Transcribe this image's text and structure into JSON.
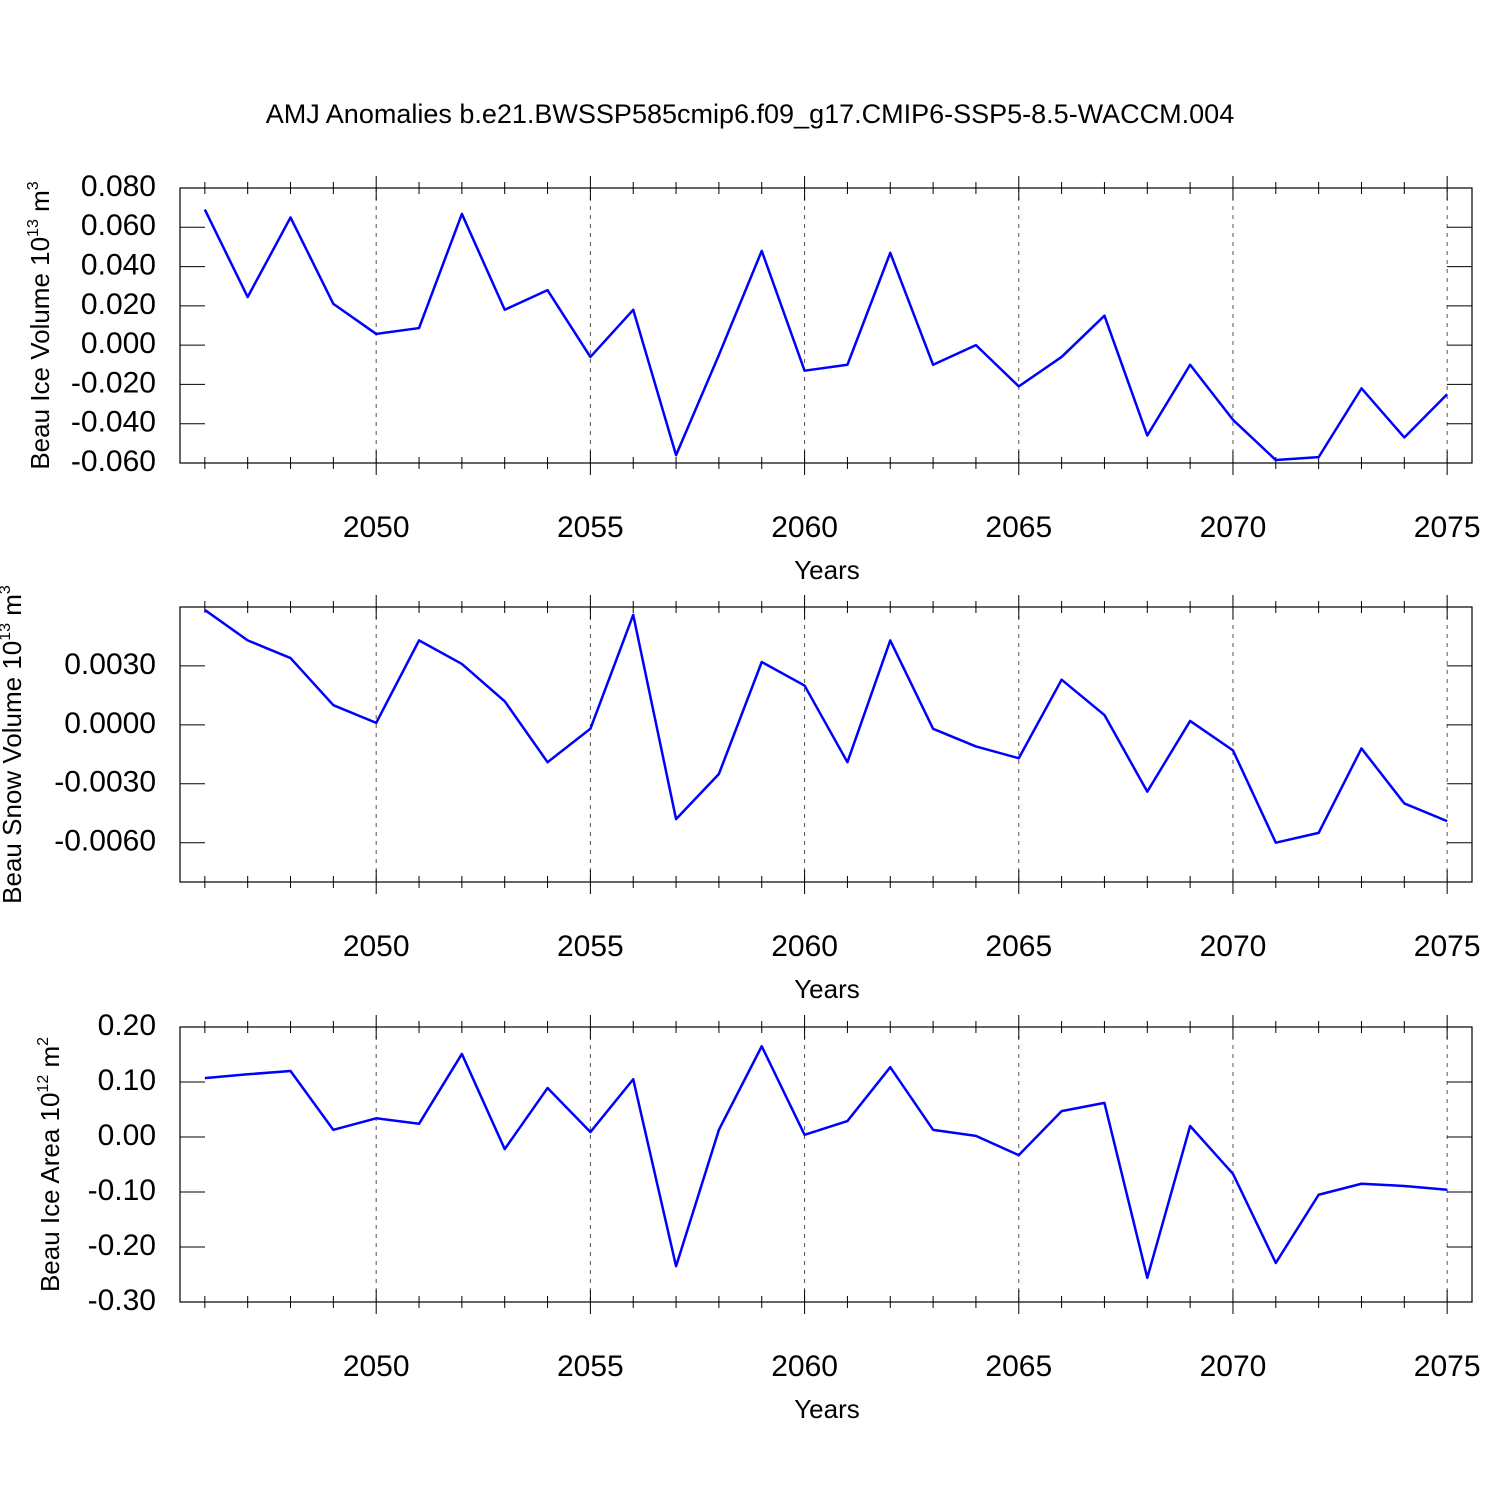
{
  "chart_data": [
    {
      "type": "line",
      "title": "AMJ Anomalies b.e21.BWSSP585cmip6.f09_g17.CMIP6-SSP5-8.5-WACCM.004",
      "ylabel": {
        "text": "Beau Ice Volume 10",
        "exponent": "13",
        "unit": " m",
        "unit_exponent": "3"
      },
      "xlabel": "Years",
      "x": [
        2046,
        2047,
        2048,
        2049,
        2050,
        2051,
        2052,
        2053,
        2054,
        2055,
        2056,
        2057,
        2058,
        2059,
        2060,
        2061,
        2062,
        2063,
        2064,
        2065,
        2066,
        2067,
        2068,
        2069,
        2070,
        2071,
        2072,
        2073,
        2074,
        2075
      ],
      "series": [
        {
          "color": "#0000ff",
          "values": [
            0.069,
            0.0245,
            0.065,
            0.021,
            0.0057,
            0.0087,
            0.0668,
            0.018,
            0.028,
            -0.006,
            0.018,
            -0.056,
            -0.005,
            0.048,
            -0.013,
            -0.01,
            0.047,
            -0.01,
            0.0,
            -0.021,
            -0.006,
            0.015,
            -0.046,
            -0.01,
            -0.038,
            -0.0585,
            -0.057,
            -0.022,
            -0.047,
            -0.025
          ]
        }
      ],
      "xlim": [
        2045.42,
        2075.58
      ],
      "xticks": [
        2050,
        2055,
        2060,
        2065,
        2070,
        2075
      ],
      "xminorticks": [
        2046,
        2047,
        2048,
        2049,
        2051,
        2052,
        2053,
        2054,
        2056,
        2057,
        2058,
        2059,
        2061,
        2062,
        2063,
        2064,
        2066,
        2067,
        2068,
        2069,
        2071,
        2072,
        2073,
        2074
      ],
      "ylim": [
        -0.06,
        0.08
      ],
      "yticks": [
        {
          "value": 0.08,
          "label": "0.080"
        },
        {
          "value": 0.06,
          "label": "0.060"
        },
        {
          "value": 0.04,
          "label": "0.040"
        },
        {
          "value": 0.02,
          "label": "0.020"
        },
        {
          "value": 0,
          "label": "0.000"
        },
        {
          "value": -0.02,
          "label": "-0.020"
        },
        {
          "value": -0.04,
          "label": "-0.040"
        },
        {
          "value": -0.06,
          "label": "-0.060"
        }
      ],
      "grid": "x-dashed"
    },
    {
      "type": "line",
      "ylabel": {
        "text": "Beau Snow Volume 10",
        "exponent": "13",
        "unit": " m",
        "unit_exponent": "3"
      },
      "xlabel": "Years",
      "x": [
        2046,
        2047,
        2048,
        2049,
        2050,
        2051,
        2052,
        2053,
        2054,
        2055,
        2056,
        2057,
        2058,
        2059,
        2060,
        2061,
        2062,
        2063,
        2064,
        2065,
        2066,
        2067,
        2068,
        2069,
        2070,
        2071,
        2072,
        2073,
        2074,
        2075
      ],
      "series": [
        {
          "color": "#0000ff",
          "values": [
            0.00585,
            0.0043,
            0.0034,
            0.001,
            0.0001,
            0.0043,
            0.0031,
            0.0012,
            -0.0019,
            -0.0002,
            0.0056,
            -0.0048,
            -0.0025,
            0.0032,
            0.002,
            -0.0019,
            0.0043,
            -0.0002,
            -0.0011,
            -0.0017,
            0.0023,
            0.0005,
            -0.0034,
            0.0002,
            -0.0013,
            -0.006,
            -0.0055,
            -0.0012,
            -0.004,
            -0.0049
          ]
        }
      ],
      "xlim": [
        2045.42,
        2075.58
      ],
      "xticks": [
        2050,
        2055,
        2060,
        2065,
        2070,
        2075
      ],
      "xminorticks": [
        2046,
        2047,
        2048,
        2049,
        2051,
        2052,
        2053,
        2054,
        2056,
        2057,
        2058,
        2059,
        2061,
        2062,
        2063,
        2064,
        2066,
        2067,
        2068,
        2069,
        2071,
        2072,
        2073,
        2074
      ],
      "ylim": [
        -0.008,
        0.006
      ],
      "yticks": [
        {
          "value": 0.003,
          "label": "0.0030"
        },
        {
          "value": 0,
          "label": "0.0000"
        },
        {
          "value": -0.003,
          "label": "-0.0030"
        },
        {
          "value": -0.006,
          "label": "-0.0060"
        }
      ],
      "grid": "x-dashed"
    },
    {
      "type": "line",
      "ylabel": {
        "text": "Beau Ice Area 10",
        "exponent": "12",
        "unit": " m",
        "unit_exponent": "2"
      },
      "xlabel": "Years",
      "x": [
        2046,
        2047,
        2048,
        2049,
        2050,
        2051,
        2052,
        2053,
        2054,
        2055,
        2056,
        2057,
        2058,
        2059,
        2060,
        2061,
        2062,
        2063,
        2064,
        2065,
        2066,
        2067,
        2068,
        2069,
        2070,
        2071,
        2072,
        2073,
        2074,
        2075
      ],
      "series": [
        {
          "color": "#0000ff",
          "values": [
            0.107,
            0.114,
            0.12,
            0.013,
            0.034,
            0.024,
            0.151,
            -0.022,
            0.089,
            0.009,
            0.105,
            -0.235,
            0.013,
            0.165,
            0.004,
            0.029,
            0.127,
            0.013,
            0.002,
            -0.033,
            0.047,
            0.062,
            -0.256,
            0.02,
            -0.067,
            -0.229,
            -0.105,
            -0.085,
            -0.089,
            -0.096
          ]
        }
      ],
      "xlim": [
        2045.42,
        2075.58
      ],
      "xticks": [
        2050,
        2055,
        2060,
        2065,
        2070,
        2075
      ],
      "xminorticks": [
        2046,
        2047,
        2048,
        2049,
        2051,
        2052,
        2053,
        2054,
        2056,
        2057,
        2058,
        2059,
        2061,
        2062,
        2063,
        2064,
        2066,
        2067,
        2068,
        2069,
        2071,
        2072,
        2073,
        2074
      ],
      "ylim": [
        -0.3,
        0.2
      ],
      "yticks": [
        {
          "value": 0.2,
          "label": "0.20"
        },
        {
          "value": 0.1,
          "label": "0.10"
        },
        {
          "value": 0,
          "label": "0.00"
        },
        {
          "value": -0.1,
          "label": "-0.10"
        },
        {
          "value": -0.2,
          "label": "-0.20"
        },
        {
          "value": -0.3,
          "label": "-0.30"
        }
      ],
      "grid": "x-dashed"
    }
  ]
}
